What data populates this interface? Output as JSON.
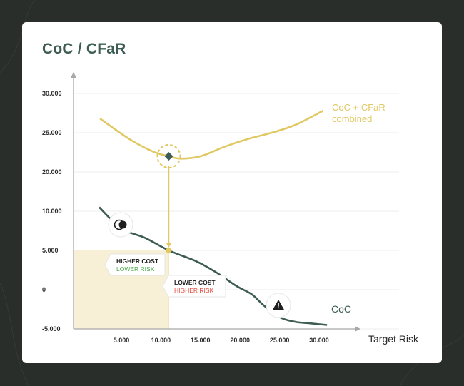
{
  "chart_data": {
    "type": "line",
    "title": "CoC / CFaR",
    "xlabel": "Target Risk",
    "ylabel": "",
    "x_ticks": [
      "5.000",
      "10.000",
      "15.000",
      "20.000",
      "25.000",
      "30.000"
    ],
    "y_ticks": [
      "-5.000",
      "0",
      "5.000",
      "10.000",
      "20.000",
      "25.000",
      "30.000"
    ],
    "series": [
      {
        "name": "CoC + CFaR combined",
        "name_lines": [
          "CoC + CFaR",
          "combined"
        ],
        "color": "#e0c862",
        "x": [
          2300,
          6000,
          9000,
          11000,
          12500,
          15000,
          18000,
          21000,
          24000,
          27000,
          30500
        ],
        "y": [
          26.8,
          24.2,
          22.6,
          22.0,
          21.7,
          22.0,
          23.2,
          24.2,
          25.0,
          26.0,
          27.8
        ]
      },
      {
        "name": "CoC",
        "color": "#3d5c53",
        "x": [
          2200,
          5000,
          8000,
          11000,
          14500,
          17000,
          19500,
          21500,
          23000,
          25000,
          27000,
          29000,
          31000
        ],
        "y": [
          11.0,
          7.8,
          6.6,
          5.0,
          3.6,
          2.2,
          0.5,
          -0.6,
          -2.0,
          -3.5,
          -4.1,
          -4.3,
          -4.5
        ]
      }
    ],
    "highlight": {
      "x": 11000,
      "y_combined": 22.0,
      "y_coc": 5.0
    },
    "annotations": [
      {
        "title": "HIGHER COST",
        "subtitle": "LOWER RISK",
        "subtitle_color": "#4aa84a"
      },
      {
        "title": "LOWER COST",
        "subtitle": "HIGHER RISK",
        "subtitle_color": "#e2463a"
      }
    ],
    "icons": [
      "coin-icon",
      "warning-icon"
    ],
    "grid": true,
    "legend": "inline-labels"
  }
}
